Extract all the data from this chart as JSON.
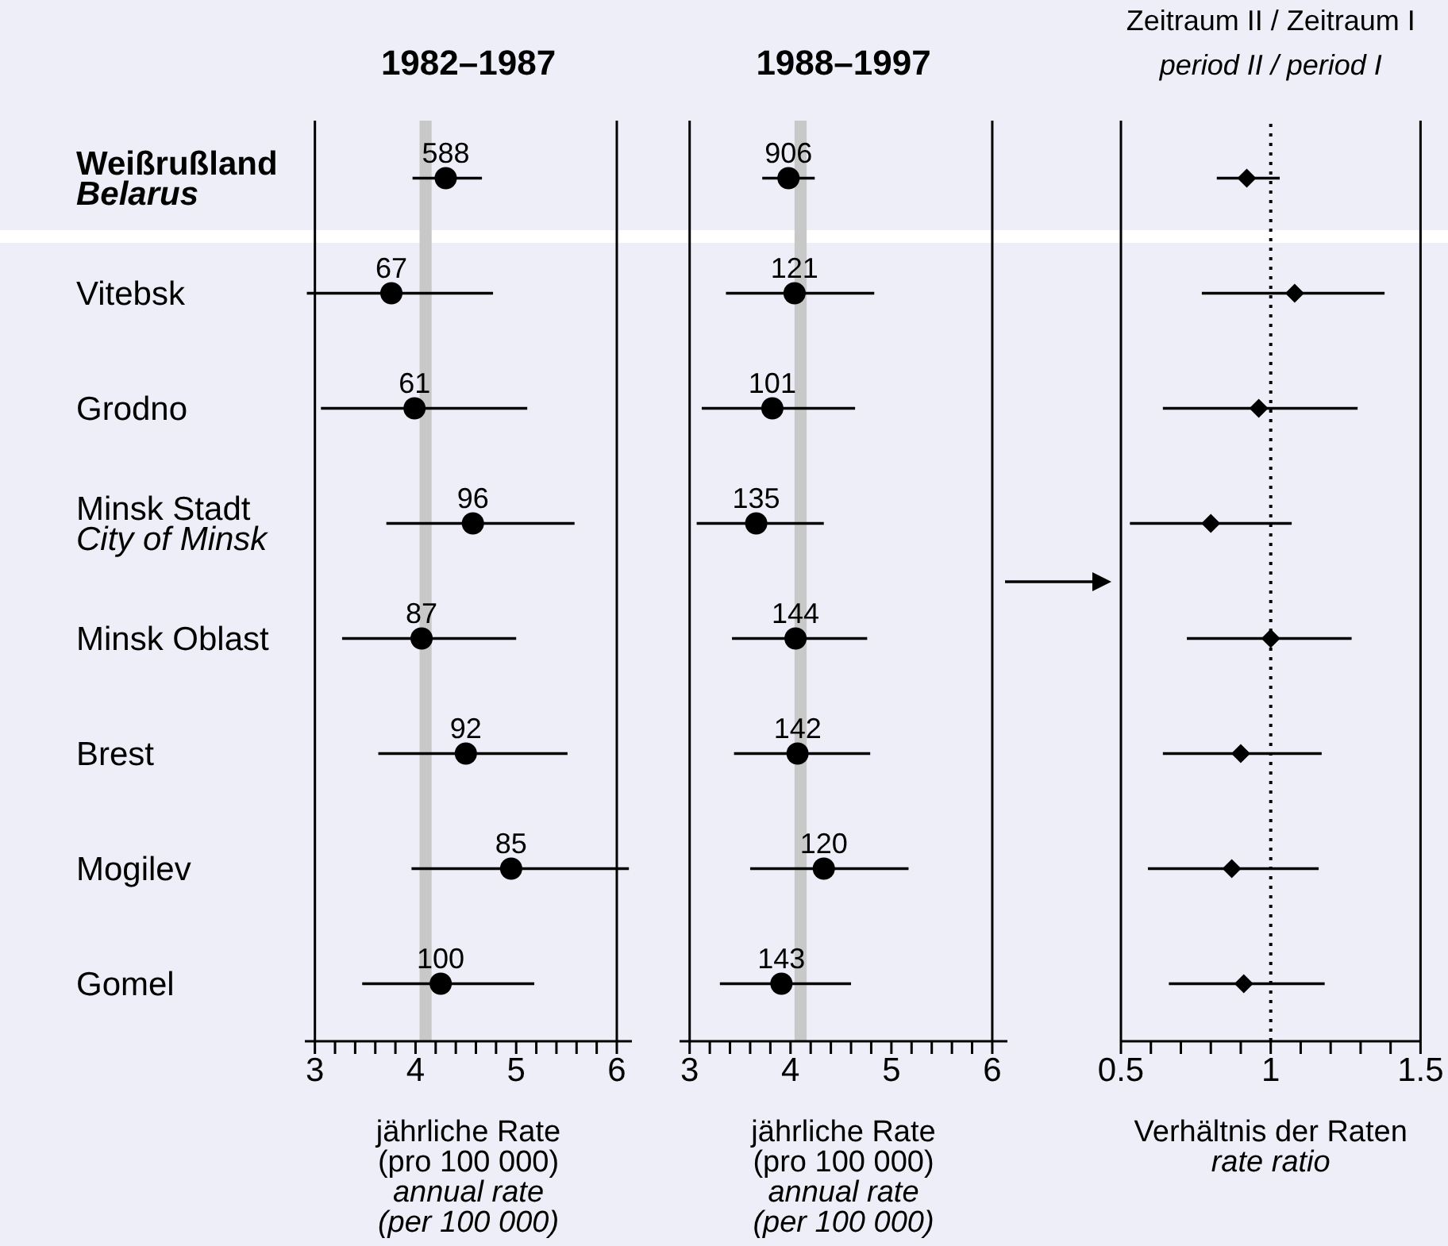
{
  "chart_data": [
    {
      "type": "scatter",
      "orientation": "horizontal",
      "title": "1982–1987",
      "categories": [
        "Weißrußland\nBelarus",
        "Vitebsk",
        "Grodno",
        "Minsk Stadt\nCity of Minsk",
        "Minsk Oblast",
        "Brest",
        "Mogilev",
        "Gomel"
      ],
      "values": [
        4.3,
        3.76,
        3.99,
        4.57,
        4.06,
        4.5,
        4.95,
        4.25
      ],
      "errors": [
        [
          3.97,
          4.66
        ],
        [
          2.92,
          4.77
        ],
        [
          3.06,
          5.11
        ],
        [
          3.71,
          5.58
        ],
        [
          3.27,
          5.0
        ],
        [
          3.63,
          5.51
        ],
        [
          3.96,
          6.12
        ],
        [
          3.47,
          5.18
        ]
      ],
      "annotations": [
        {
          "text": "588",
          "x": 4.3,
          "y": "Weißrußland\nBelarus"
        },
        {
          "text": "67",
          "x": 3.76,
          "y": "Vitebsk"
        },
        {
          "text": "61",
          "x": 3.99,
          "y": "Grodno"
        },
        {
          "text": "96",
          "x": 4.57,
          "y": "Minsk Stadt\nCity of Minsk"
        },
        {
          "text": "87",
          "x": 4.06,
          "y": "Minsk Oblast"
        },
        {
          "text": "92",
          "x": 4.5,
          "y": "Brest"
        },
        {
          "text": "85",
          "x": 4.95,
          "y": "Mogilev"
        },
        {
          "text": "100",
          "x": 4.25,
          "y": "Gomel"
        }
      ],
      "color": "#000000",
      "marker": "circle",
      "xlabel": "jährliche Rate\n(pro 100 000)\nannual rate\n(per 100 000)",
      "xlim": [
        2.9,
        6.15
      ],
      "xticks": [
        3,
        {
          "value": 3.2,
          "label": null
        },
        {
          "value": 3.4,
          "label": null
        },
        {
          "value": 3.6,
          "label": null
        },
        {
          "value": 3.8,
          "label": null
        },
        4,
        {
          "value": 4.2,
          "label": null
        },
        {
          "value": 4.4,
          "label": null
        },
        {
          "value": 4.6,
          "label": null
        },
        {
          "value": 4.8,
          "label": null
        },
        5,
        {
          "value": 5.2,
          "label": null
        },
        {
          "value": 5.4,
          "label": null
        },
        {
          "value": 5.6,
          "label": null
        },
        {
          "value": 5.8,
          "label": null
        },
        6
      ],
      "bands": [
        {
          "axis": "x",
          "from": 4.04,
          "to": 4.16,
          "color": "#c8c8c8"
        }
      ]
    },
    {
      "type": "scatter",
      "orientation": "horizontal",
      "title": "1988–1997",
      "categories": [
        "Weißrußland\nBelarus",
        "Vitebsk",
        "Grodno",
        "Minsk Stadt\nCity of Minsk",
        "Minsk Oblast",
        "Brest",
        "Mogilev",
        "Gomel"
      ],
      "values": [
        3.98,
        4.04,
        3.82,
        3.66,
        4.05,
        4.07,
        4.33,
        3.91
      ],
      "errors": [
        [
          3.72,
          4.24
        ],
        [
          3.36,
          4.83
        ],
        [
          3.12,
          4.64
        ],
        [
          3.07,
          4.33
        ],
        [
          3.42,
          4.76
        ],
        [
          3.44,
          4.79
        ],
        [
          3.6,
          5.17
        ],
        [
          3.3,
          4.6
        ]
      ],
      "annotations": [
        {
          "text": "906",
          "x": 3.98,
          "y": "Weißrußland\nBelarus"
        },
        {
          "text": "121",
          "x": 4.04,
          "y": "Vitebsk"
        },
        {
          "text": "101",
          "x": 3.82,
          "y": "Grodno"
        },
        {
          "text": "135",
          "x": 3.66,
          "y": "Minsk Stadt\nCity of Minsk"
        },
        {
          "text": "144",
          "x": 4.05,
          "y": "Minsk Oblast"
        },
        {
          "text": "142",
          "x": 4.07,
          "y": "Brest"
        },
        {
          "text": "120",
          "x": 4.33,
          "y": "Mogilev"
        },
        {
          "text": "143",
          "x": 3.91,
          "y": "Gomel"
        }
      ],
      "color": "#000000",
      "marker": "circle",
      "xlabel": "jährliche Rate\n(pro 100 000)\nannual rate\n(per 100 000)",
      "xlim": [
        2.9,
        6.15
      ],
      "tick_labels": "x",
      "xticks": [
        3,
        {
          "value": 3.2,
          "label": null
        },
        {
          "value": 3.4,
          "label": null
        },
        {
          "value": 3.6,
          "label": null
        },
        {
          "value": 3.8,
          "label": null
        },
        4,
        {
          "value": 4.2,
          "label": null
        },
        {
          "value": 4.4,
          "label": null
        },
        {
          "value": 4.6,
          "label": null
        },
        {
          "value": 4.8,
          "label": null
        },
        5,
        {
          "value": 5.2,
          "label": null
        },
        {
          "value": 5.4,
          "label": null
        },
        {
          "value": 5.6,
          "label": null
        },
        {
          "value": 5.8,
          "label": null
        },
        6
      ],
      "bands": [
        {
          "axis": "x",
          "from": 4.04,
          "to": 4.16,
          "color": "#c8c8c8"
        }
      ]
    },
    {
      "type": "scatter",
      "orientation": "horizontal",
      "title": "Zeitraum II / Zeitraum I",
      "subtitle": "period II / period I",
      "categories": [
        "Weißrußland\nBelarus",
        "Vitebsk",
        "Grodno",
        "Minsk Stadt\nCity of Minsk",
        "Minsk Oblast",
        "Brest",
        "Mogilev",
        "Gomel"
      ],
      "values": [
        0.92,
        1.08,
        0.96,
        0.8,
        1.0,
        0.9,
        0.87,
        0.91
      ],
      "errors": [
        [
          0.82,
          1.03
        ],
        [
          0.77,
          1.38
        ],
        [
          0.64,
          1.29
        ],
        [
          0.53,
          1.07
        ],
        [
          0.72,
          1.27
        ],
        [
          0.64,
          1.17
        ],
        [
          0.59,
          1.16
        ],
        [
          0.66,
          1.18
        ]
      ],
      "color": "#000000",
      "marker": "diamond",
      "xlabel": "Verhältnis der Raten\nrate ratio",
      "xlim": [
        0.5,
        1.5
      ],
      "tick_labels": "x",
      "xticks": [
        0.5,
        {
          "value": 0.6,
          "label": null
        },
        {
          "value": 0.7,
          "label": null
        },
        {
          "value": 0.8,
          "label": null
        },
        {
          "value": 0.9,
          "label": null
        },
        1,
        {
          "value": 1.1,
          "label": null
        },
        {
          "value": 1.2,
          "label": null
        },
        {
          "value": 1.3,
          "label": null
        },
        {
          "value": 1.4,
          "label": null
        },
        1.5
      ],
      "ref_lines": [
        {
          "axis": "x",
          "value": 1,
          "line_style": "dotted",
          "color": "#000000"
        }
      ]
    }
  ]
}
